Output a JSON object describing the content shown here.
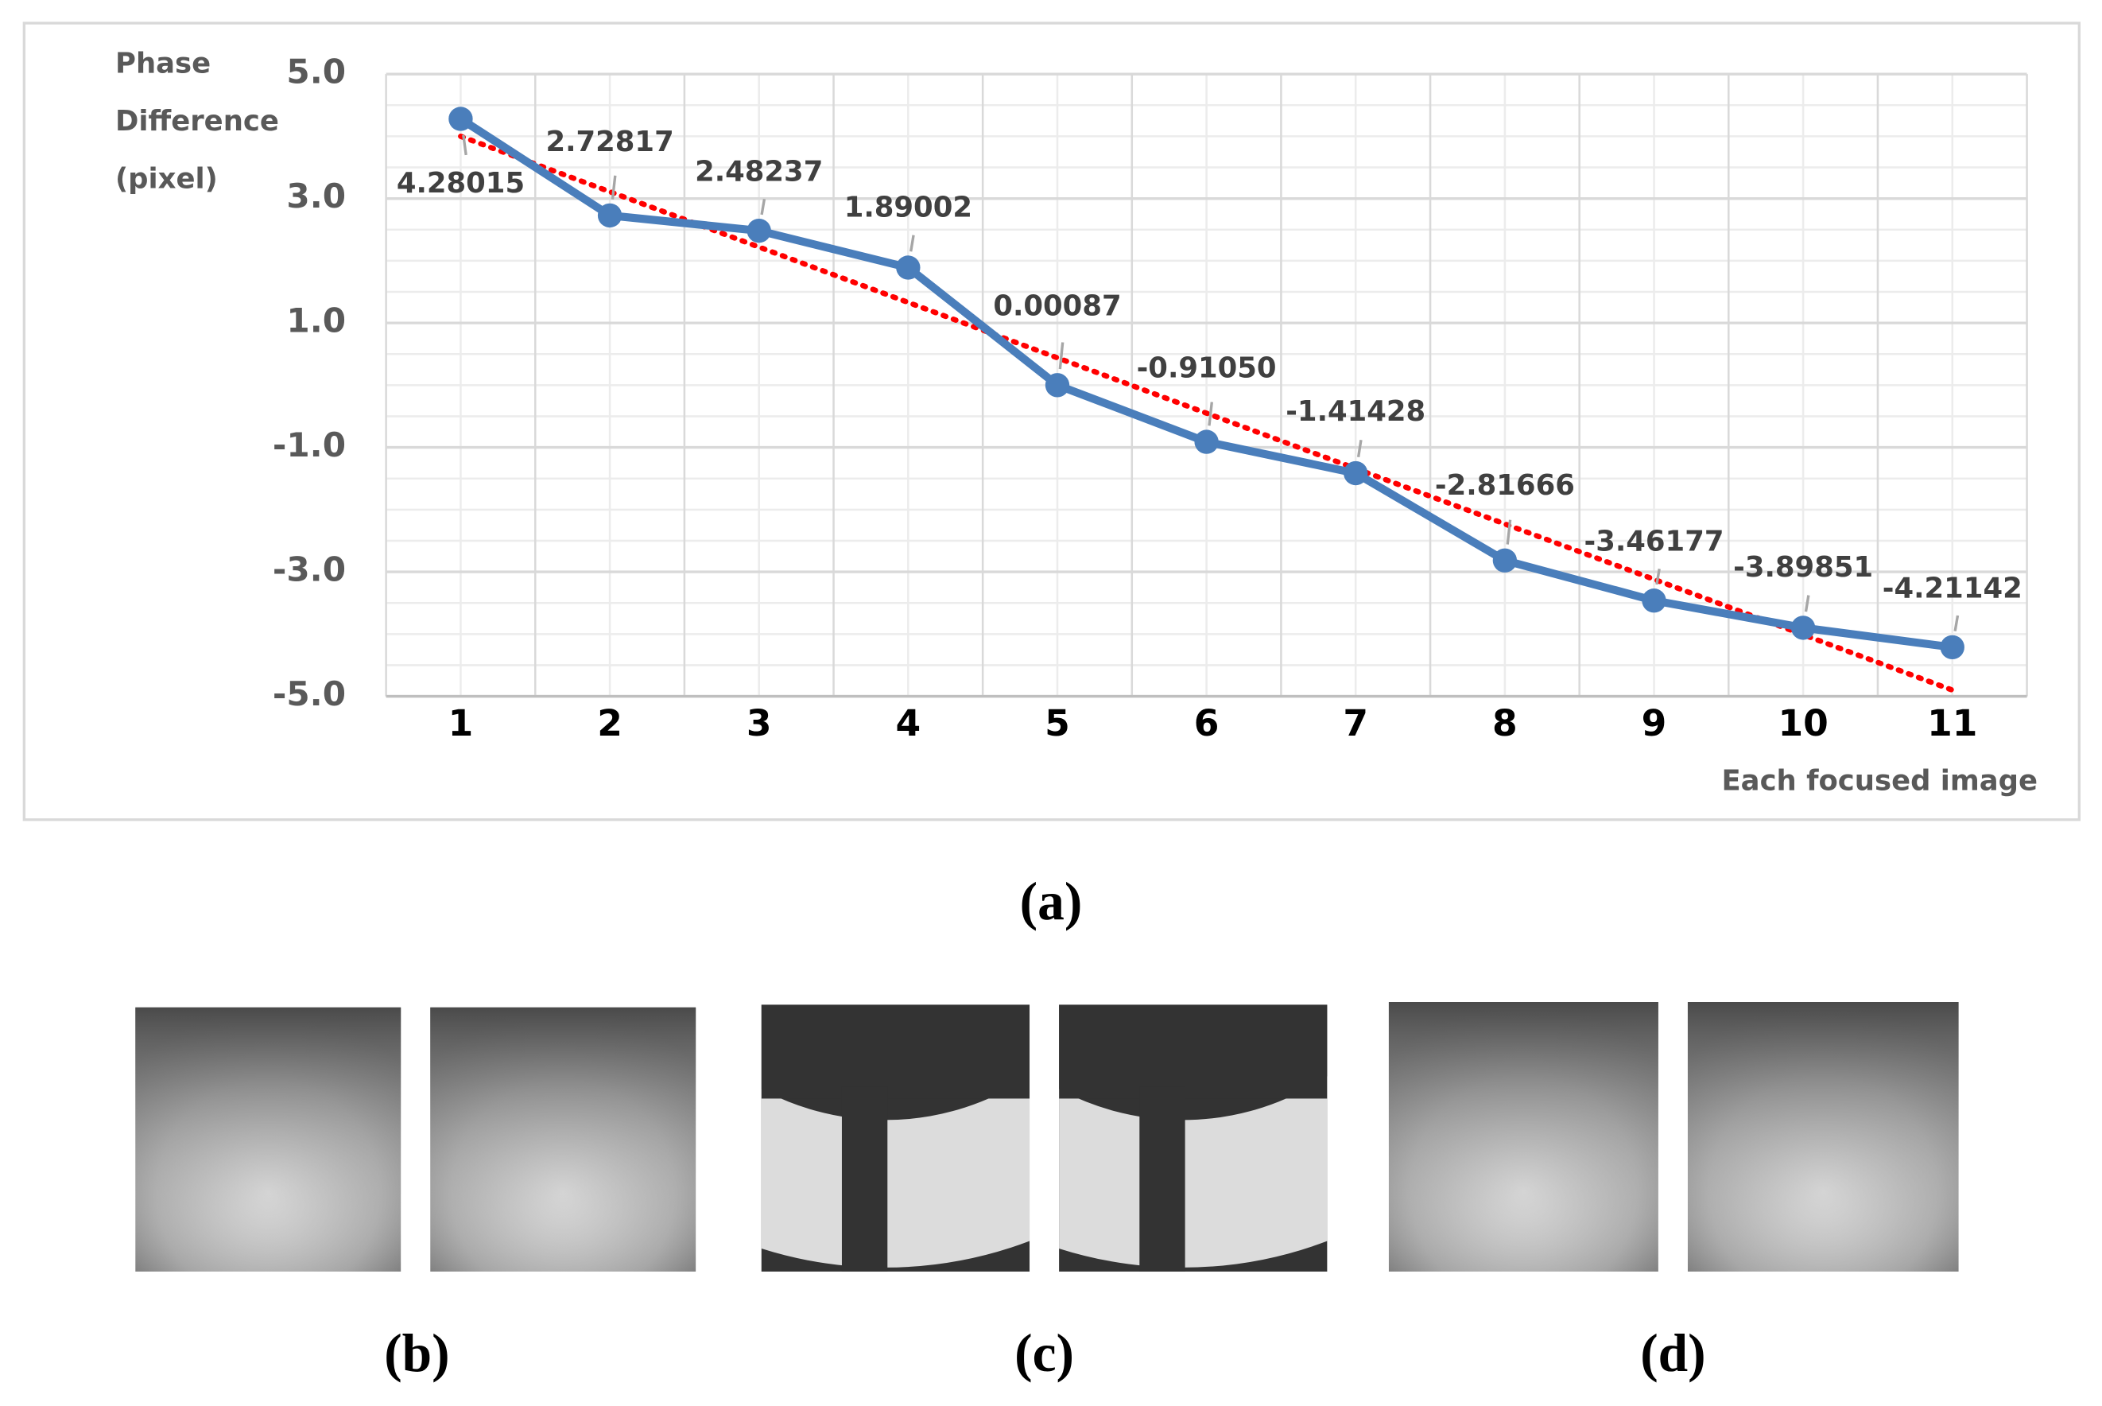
{
  "chart_data": {
    "type": "line",
    "ylabel_lines": [
      "Phase",
      "Difference",
      "(pixel)"
    ],
    "xlabel": "Each focused image",
    "categories": [
      "1",
      "2",
      "3",
      "4",
      "5",
      "6",
      "7",
      "8",
      "9",
      "10",
      "11"
    ],
    "series": [
      {
        "color": "#4a7ebb",
        "values": [
          4.28015,
          2.72817,
          2.48237,
          1.89002,
          0.00087,
          -0.9105,
          -1.41428,
          -2.81666,
          -3.46177,
          -3.89851,
          -4.21142
        ],
        "value_labels": [
          "4.28015",
          "2.72817",
          "2.48237",
          "1.89002",
          "0.00087",
          "-0.91050",
          "-1.41428",
          "-2.81666",
          "-3.46177",
          "-3.89851",
          "-4.21142"
        ]
      }
    ],
    "trendline": {
      "color": "#ff0000",
      "x": [
        1,
        11
      ],
      "values": [
        4.0,
        -4.9
      ]
    },
    "ylim": [
      -5,
      5
    ],
    "yticks": [
      {
        "value": 5,
        "label": "5.0"
      },
      {
        "value": 3,
        "label": "3.0"
      },
      {
        "value": 1,
        "label": "1.0"
      },
      {
        "value": -1,
        "label": "-1.0"
      },
      {
        "value": -3,
        "label": "-3.0"
      },
      {
        "value": -5,
        "label": "-5.0"
      }
    ],
    "minor_yticks": [
      4.5,
      4,
      3.5,
      2.5,
      2,
      1.5,
      0.5,
      0,
      -0.5,
      -1.5,
      -2,
      -2.5,
      -3.5,
      -4,
      -4.5
    ],
    "grid": true
  },
  "captions": [
    "(a)",
    "(b)",
    "(c)",
    "(d)"
  ]
}
